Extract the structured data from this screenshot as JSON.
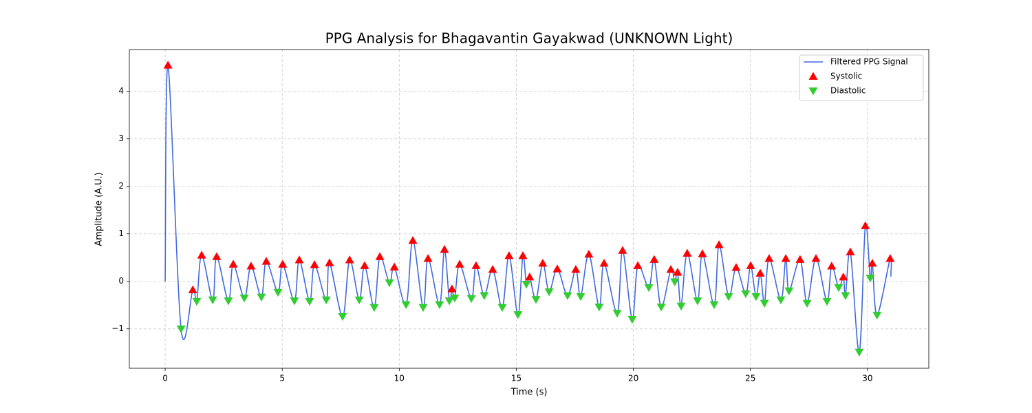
{
  "chart_data": {
    "type": "line",
    "title": "PPG Analysis for Bhagavantin Gayakwad (UNKNOWN Light)",
    "x_label": "Time (s)",
    "y_label": "Amplitude (A.U.)",
    "xlim": [
      -1.53,
      32.62
    ],
    "ylim": [
      -1.83,
      4.88
    ],
    "xticks": [
      0,
      5,
      10,
      15,
      20,
      25,
      30
    ],
    "yticks": [
      {
        "value": -1,
        "label": "−1"
      },
      0,
      1,
      2,
      3,
      4
    ],
    "grid": true,
    "legend": "upper right",
    "series": [
      {
        "name": "Filtered PPG Signal",
        "type": "line",
        "color": "#4169e1",
        "x": [
          0,
          0.12,
          0.68,
          1.18,
          1.35,
          1.56,
          2.03,
          2.2,
          2.7,
          2.91,
          3.38,
          3.67,
          4.11,
          4.32,
          4.82,
          5.02,
          5.52,
          5.73,
          6.17,
          6.38,
          6.88,
          7.02,
          7.58,
          7.88,
          8.29,
          8.52,
          8.93,
          9.17,
          9.58,
          9.79,
          10.29,
          10.58,
          11.02,
          11.23,
          11.72,
          11.93,
          12.14,
          12.25,
          12.37,
          12.58,
          13.08,
          13.28,
          13.63,
          13.99,
          14.4,
          14.69,
          15.07,
          15.28,
          15.43,
          15.57,
          15.84,
          16.13,
          16.4,
          16.75,
          17.19,
          17.54,
          17.75,
          18.1,
          18.54,
          18.75,
          19.31,
          19.54,
          19.95,
          20.19,
          20.66,
          20.89,
          21.19,
          21.6,
          21.77,
          21.89,
          22.04,
          22.3,
          22.74,
          22.95,
          23.45,
          23.66,
          24.07,
          24.39,
          24.8,
          25.01,
          25.24,
          25.42,
          25.6,
          25.8,
          26.3,
          26.51,
          26.65,
          27.12,
          27.42,
          27.8,
          28.27,
          28.47,
          28.77,
          28.97,
          29.06,
          29.27,
          29.65,
          29.91,
          30.12,
          30.21,
          30.41,
          30.97,
          31.0
        ],
        "values": [
          0,
          4.55,
          -1.0,
          -0.18,
          -0.42,
          0.55,
          -0.39,
          0.52,
          -0.41,
          0.36,
          -0.35,
          0.32,
          -0.33,
          0.42,
          -0.23,
          0.36,
          -0.41,
          0.45,
          -0.42,
          0.35,
          -0.39,
          0.39,
          -0.74,
          0.45,
          -0.39,
          0.33,
          -0.55,
          0.52,
          -0.03,
          0.3,
          -0.49,
          0.86,
          -0.55,
          0.48,
          -0.49,
          0.67,
          -0.41,
          -0.16,
          -0.35,
          0.36,
          -0.36,
          0.33,
          -0.3,
          0.25,
          -0.55,
          0.54,
          -0.7,
          0.54,
          -0.06,
          0.09,
          -0.38,
          0.38,
          -0.22,
          0.26,
          -0.3,
          0.25,
          -0.32,
          0.57,
          -0.54,
          0.38,
          -0.67,
          0.65,
          -0.8,
          0.33,
          -0.13,
          0.46,
          -0.54,
          0.25,
          -0.01,
          0.19,
          -0.52,
          0.59,
          -0.41,
          0.58,
          -0.49,
          0.77,
          -0.32,
          0.29,
          -0.26,
          0.33,
          -0.32,
          0.17,
          -0.46,
          0.48,
          -0.39,
          0.48,
          -0.2,
          0.46,
          -0.46,
          0.48,
          -0.42,
          0.32,
          -0.13,
          0.09,
          -0.3,
          0.62,
          -1.49,
          1.17,
          0.07,
          0.38,
          -0.71,
          0.48,
          0.1
        ]
      },
      {
        "name": "Systolic",
        "type": "scatter",
        "marker": "triangle-up",
        "color": "#ff0000",
        "x": [
          0.12,
          1.18,
          1.56,
          2.2,
          2.91,
          3.67,
          4.32,
          5.02,
          5.73,
          6.38,
          7.02,
          7.88,
          8.52,
          9.17,
          9.79,
          10.58,
          11.23,
          11.93,
          12.25,
          12.58,
          13.28,
          13.99,
          14.69,
          15.28,
          15.57,
          16.13,
          16.75,
          17.54,
          18.1,
          18.75,
          19.54,
          20.19,
          20.89,
          21.6,
          21.89,
          22.3,
          22.95,
          23.66,
          24.39,
          25.01,
          25.42,
          25.8,
          26.51,
          27.12,
          27.8,
          28.47,
          28.97,
          29.27,
          29.91,
          30.21,
          30.97
        ],
        "values": [
          4.55,
          -0.18,
          0.55,
          0.52,
          0.36,
          0.32,
          0.42,
          0.36,
          0.45,
          0.35,
          0.39,
          0.45,
          0.33,
          0.52,
          0.3,
          0.86,
          0.48,
          0.67,
          -0.16,
          0.36,
          0.33,
          0.25,
          0.54,
          0.54,
          0.09,
          0.38,
          0.26,
          0.25,
          0.57,
          0.38,
          0.65,
          0.33,
          0.46,
          0.25,
          0.19,
          0.59,
          0.58,
          0.77,
          0.29,
          0.33,
          0.17,
          0.48,
          0.48,
          0.46,
          0.48,
          0.32,
          0.09,
          0.62,
          1.17,
          0.38,
          0.48
        ]
      },
      {
        "name": "Diastolic",
        "type": "scatter",
        "marker": "triangle-down",
        "color": "#32cd32",
        "x": [
          0.68,
          1.35,
          2.03,
          2.7,
          3.38,
          4.11,
          4.82,
          5.52,
          6.17,
          6.88,
          7.58,
          8.29,
          8.93,
          9.58,
          10.29,
          11.02,
          11.72,
          12.14,
          12.37,
          13.08,
          13.63,
          14.4,
          15.07,
          15.43,
          15.84,
          16.4,
          17.19,
          17.75,
          18.54,
          19.31,
          19.95,
          20.66,
          21.19,
          21.77,
          22.04,
          22.74,
          23.45,
          24.07,
          24.8,
          25.24,
          25.6,
          26.3,
          26.65,
          27.42,
          28.27,
          28.77,
          29.06,
          29.65,
          30.12,
          30.41
        ],
        "values": [
          -1.0,
          -0.42,
          -0.39,
          -0.41,
          -0.35,
          -0.33,
          -0.23,
          -0.41,
          -0.42,
          -0.39,
          -0.74,
          -0.39,
          -0.55,
          -0.03,
          -0.49,
          -0.55,
          -0.49,
          -0.41,
          -0.35,
          -0.36,
          -0.3,
          -0.55,
          -0.7,
          -0.06,
          -0.38,
          -0.22,
          -0.3,
          -0.32,
          -0.54,
          -0.67,
          -0.8,
          -0.13,
          -0.54,
          -0.01,
          -0.52,
          -0.41,
          -0.49,
          -0.32,
          -0.26,
          -0.32,
          -0.46,
          -0.39,
          -0.2,
          -0.46,
          -0.42,
          -0.13,
          -0.3,
          -1.49,
          0.07,
          -0.71
        ]
      }
    ]
  }
}
